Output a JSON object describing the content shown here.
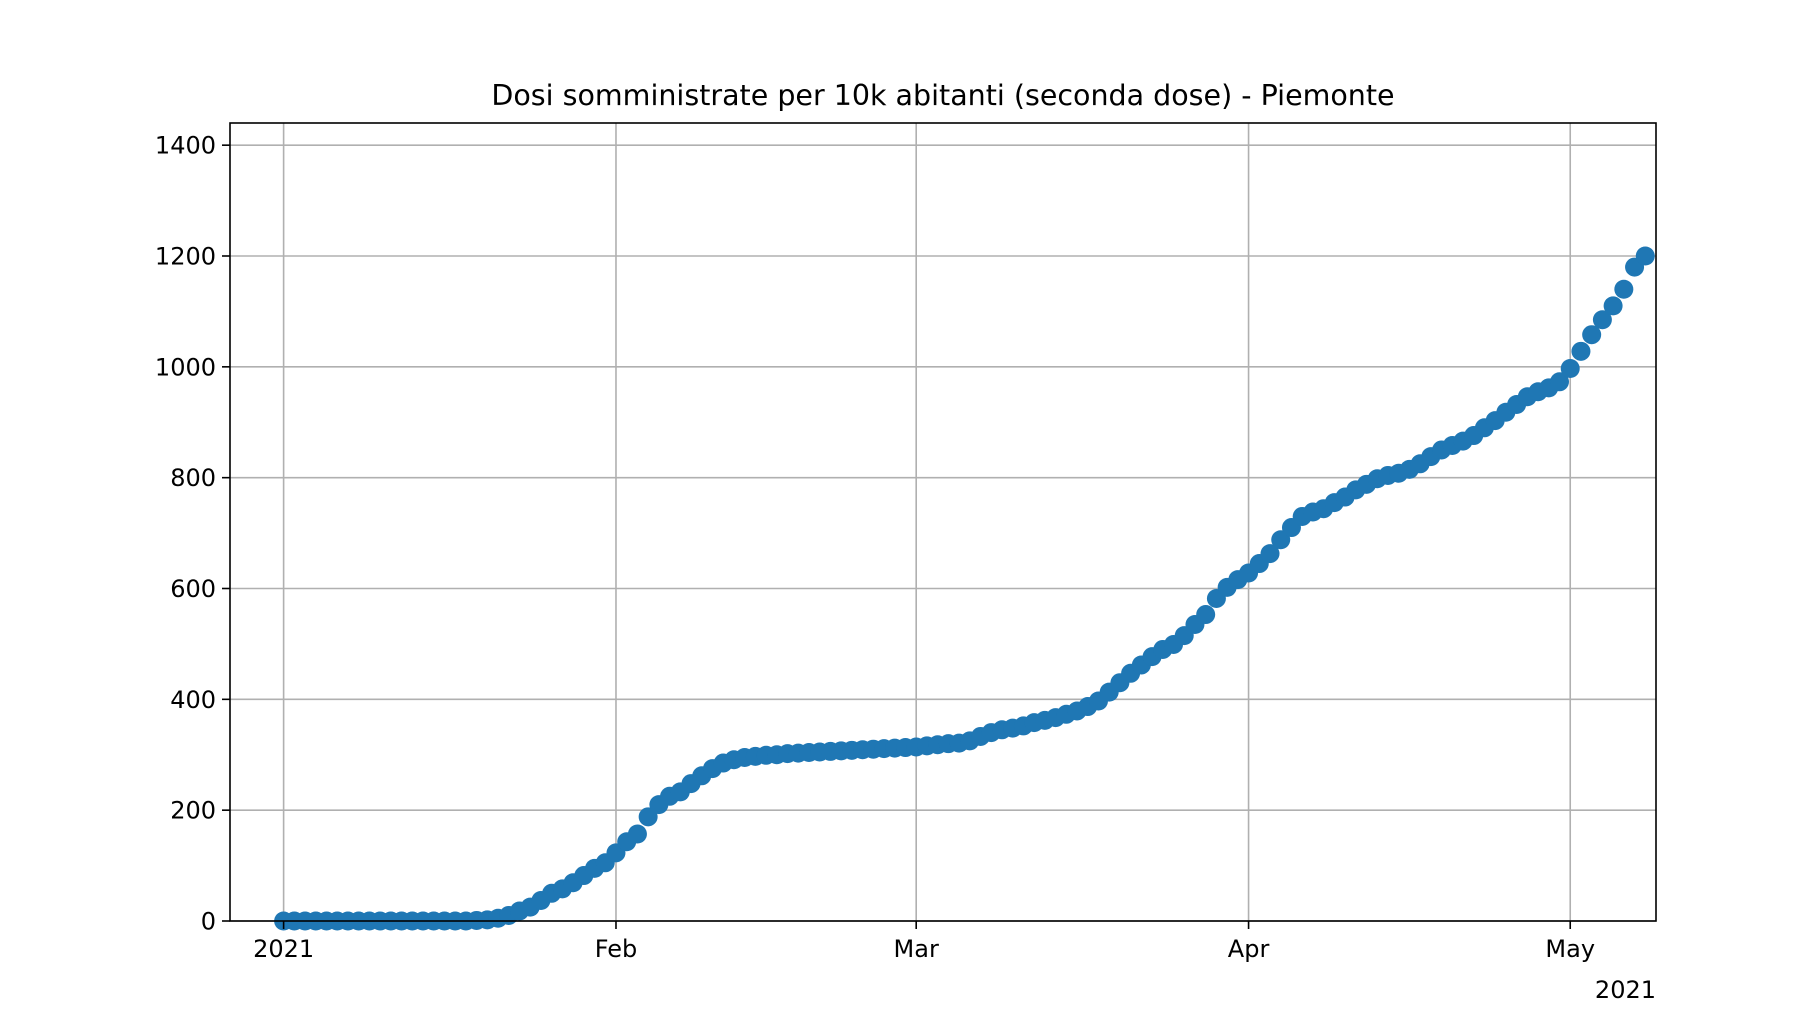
{
  "chart_data": {
    "type": "scatter",
    "title": "Dosi somministrate per 10k abitanti (seconda dose) - Piemonte",
    "xlabel": "",
    "ylabel": "",
    "x_start_date": "2021-01-01",
    "x_end_date": "2021-05-05",
    "xlim": [
      "2020-12-27",
      "2021-05-09"
    ],
    "ylim": [
      0,
      1440
    ],
    "x_ticks": [
      {
        "date": "2021-01-01",
        "label": "2021"
      },
      {
        "date": "2021-02-01",
        "label": "Feb"
      },
      {
        "date": "2021-03-01",
        "label": "Mar"
      },
      {
        "date": "2021-04-01",
        "label": "Apr"
      },
      {
        "date": "2021-05-01",
        "label": "May"
      }
    ],
    "x_offset_label": "2021",
    "y_ticks": [
      0,
      200,
      400,
      600,
      800,
      1000,
      1200,
      1400
    ],
    "grid": true,
    "marker_color": "#1f77b4",
    "series": [
      {
        "values": [
          0,
          0,
          0,
          0,
          0,
          0,
          0,
          0,
          0,
          0,
          0,
          0,
          0,
          0,
          0,
          0,
          0,
          0,
          1,
          2,
          5,
          10,
          18,
          25,
          37,
          50,
          58,
          69,
          82,
          95,
          105,
          123,
          143,
          157,
          188,
          210,
          225,
          233,
          248,
          262,
          275,
          285,
          291,
          295,
          297,
          299,
          300,
          302,
          303,
          304,
          305,
          306,
          307,
          308,
          309,
          310,
          311,
          312,
          313,
          314,
          316,
          318,
          320,
          321,
          325,
          333,
          340,
          345,
          348,
          352,
          358,
          362,
          367,
          373,
          379,
          387,
          397,
          413,
          430,
          447,
          462,
          477,
          490,
          499,
          515,
          535,
          553,
          582,
          602,
          616,
          628,
          645,
          663,
          688,
          710,
          730,
          738,
          744,
          755,
          765,
          778,
          788,
          798,
          804,
          808,
          815,
          825,
          838,
          850,
          858,
          866,
          876,
          890,
          903,
          918,
          932,
          946,
          955,
          962,
          973,
          997,
          1028,
          1058,
          1085,
          1110,
          1140,
          1180,
          1200
        ]
      }
    ]
  }
}
